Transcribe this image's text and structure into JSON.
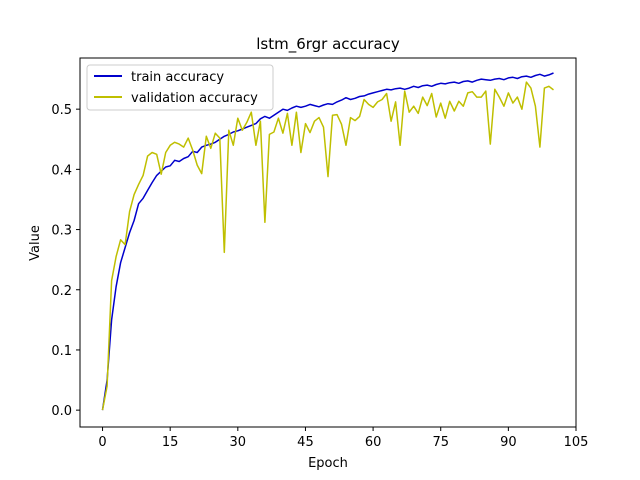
{
  "chart_data": {
    "type": "line",
    "title": "lstm_6rgr accuracy",
    "xlabel": "Epoch",
    "ylabel": "Value",
    "xlim": [
      -5,
      105
    ],
    "ylim": [
      -0.028,
      0.585
    ],
    "xticks": [
      0,
      15,
      30,
      45,
      60,
      75,
      90,
      105
    ],
    "yticks": [
      0.0,
      0.1,
      0.2,
      0.3,
      0.4,
      0.5
    ],
    "grid": false,
    "legend_position": "upper-left",
    "series": [
      {
        "name": "train accuracy",
        "color": "#0000cc",
        "x": [
          0,
          1,
          2,
          3,
          4,
          5,
          6,
          7,
          8,
          9,
          10,
          11,
          12,
          13,
          14,
          15,
          16,
          17,
          18,
          19,
          20,
          21,
          22,
          23,
          24,
          25,
          26,
          27,
          28,
          29,
          30,
          31,
          32,
          33,
          34,
          35,
          36,
          37,
          38,
          39,
          40,
          41,
          42,
          43,
          44,
          45,
          46,
          47,
          48,
          49,
          50,
          51,
          52,
          53,
          54,
          55,
          56,
          57,
          58,
          59,
          60,
          61,
          62,
          63,
          64,
          65,
          66,
          67,
          68,
          69,
          70,
          71,
          72,
          73,
          74,
          75,
          76,
          77,
          78,
          79,
          80,
          81,
          82,
          83,
          84,
          85,
          86,
          87,
          88,
          89,
          90,
          91,
          92,
          93,
          94,
          95,
          96,
          97,
          98,
          99,
          100
        ],
        "y": [
          0.0,
          0.05,
          0.15,
          0.205,
          0.245,
          0.27,
          0.295,
          0.315,
          0.343,
          0.352,
          0.365,
          0.378,
          0.39,
          0.397,
          0.404,
          0.406,
          0.415,
          0.413,
          0.418,
          0.421,
          0.43,
          0.428,
          0.437,
          0.44,
          0.442,
          0.445,
          0.45,
          0.455,
          0.458,
          0.462,
          0.464,
          0.467,
          0.47,
          0.473,
          0.476,
          0.484,
          0.488,
          0.485,
          0.49,
          0.495,
          0.5,
          0.498,
          0.502,
          0.505,
          0.503,
          0.505,
          0.508,
          0.506,
          0.504,
          0.507,
          0.509,
          0.508,
          0.512,
          0.515,
          0.519,
          0.516,
          0.518,
          0.521,
          0.522,
          0.525,
          0.527,
          0.529,
          0.531,
          0.533,
          0.532,
          0.534,
          0.535,
          0.533,
          0.535,
          0.538,
          0.536,
          0.539,
          0.54,
          0.538,
          0.541,
          0.543,
          0.542,
          0.544,
          0.545,
          0.543,
          0.546,
          0.547,
          0.545,
          0.548,
          0.55,
          0.549,
          0.548,
          0.55,
          0.551,
          0.549,
          0.552,
          0.553,
          0.551,
          0.554,
          0.555,
          0.553,
          0.556,
          0.558,
          0.555,
          0.557,
          0.56
        ]
      },
      {
        "name": "validation accuracy",
        "color": "#bfbf00",
        "x": [
          0,
          1,
          2,
          3,
          4,
          5,
          6,
          7,
          8,
          9,
          10,
          11,
          12,
          13,
          14,
          15,
          16,
          17,
          18,
          19,
          20,
          21,
          22,
          23,
          24,
          25,
          26,
          27,
          28,
          29,
          30,
          31,
          32,
          33,
          34,
          35,
          36,
          37,
          38,
          39,
          40,
          41,
          42,
          43,
          44,
          45,
          46,
          47,
          48,
          49,
          50,
          51,
          52,
          53,
          54,
          55,
          56,
          57,
          58,
          59,
          60,
          61,
          62,
          63,
          64,
          65,
          66,
          67,
          68,
          69,
          70,
          71,
          72,
          73,
          74,
          75,
          76,
          77,
          78,
          79,
          80,
          81,
          82,
          83,
          84,
          85,
          86,
          87,
          88,
          89,
          90,
          91,
          92,
          93,
          94,
          95,
          96,
          97,
          98,
          99,
          100
        ],
        "y": [
          0.0,
          0.04,
          0.215,
          0.255,
          0.283,
          0.275,
          0.33,
          0.358,
          0.375,
          0.39,
          0.422,
          0.428,
          0.425,
          0.392,
          0.428,
          0.44,
          0.445,
          0.442,
          0.437,
          0.452,
          0.432,
          0.407,
          0.393,
          0.455,
          0.435,
          0.46,
          0.452,
          0.262,
          0.465,
          0.44,
          0.485,
          0.465,
          0.478,
          0.495,
          0.44,
          0.48,
          0.312,
          0.458,
          0.462,
          0.485,
          0.46,
          0.493,
          0.44,
          0.495,
          0.428,
          0.476,
          0.461,
          0.48,
          0.486,
          0.47,
          0.388,
          0.49,
          0.491,
          0.475,
          0.44,
          0.486,
          0.481,
          0.488,
          0.516,
          0.508,
          0.503,
          0.512,
          0.516,
          0.526,
          0.48,
          0.512,
          0.44,
          0.53,
          0.495,
          0.505,
          0.493,
          0.52,
          0.506,
          0.526,
          0.487,
          0.51,
          0.485,
          0.513,
          0.497,
          0.513,
          0.505,
          0.527,
          0.529,
          0.52,
          0.52,
          0.53,
          0.442,
          0.533,
          0.52,
          0.505,
          0.527,
          0.51,
          0.52,
          0.5,
          0.545,
          0.535,
          0.505,
          0.437,
          0.535,
          0.538,
          0.532
        ]
      }
    ]
  }
}
